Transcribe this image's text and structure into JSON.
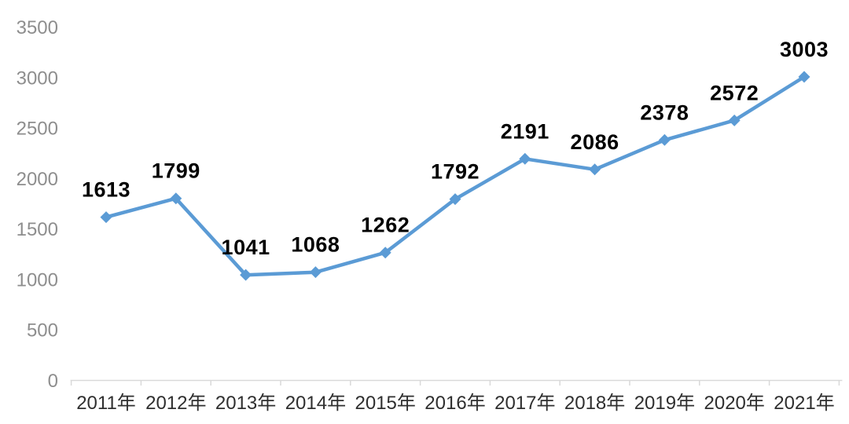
{
  "chart_data": {
    "type": "line",
    "title": "",
    "xlabel": "",
    "ylabel": "",
    "categories": [
      "2011年",
      "2012年",
      "2013年",
      "2014年",
      "2015年",
      "2016年",
      "2017年",
      "2018年",
      "2019年",
      "2020年",
      "2021年"
    ],
    "series": [
      {
        "name": "",
        "values": [
          1613,
          1799,
          1041,
          1068,
          1262,
          1792,
          2191,
          2086,
          2378,
          2572,
          3003
        ],
        "data_labels": [
          "1613",
          "1799",
          "1041",
          "1068",
          "1262",
          "1792",
          "2191",
          "2086",
          "2378",
          "2572",
          "3003"
        ]
      }
    ],
    "ylim": [
      0,
      3500
    ],
    "yticks": [
      0,
      500,
      1000,
      1500,
      2000,
      2500,
      3000,
      3500
    ],
    "ytick_labels": [
      "0",
      "500",
      "1000",
      "1500",
      "2000",
      "2500",
      "3000",
      "3500"
    ],
    "grid": false,
    "legend_position": "none",
    "marker": "diamond",
    "colors": {
      "line": "#5B9BD5",
      "marker": "#5B9BD5",
      "axis_line": "#d9d9d9",
      "data_label": "#000000",
      "x_tick_label": "#2f2f2f",
      "y_tick_label": "#8e8e8e",
      "background": "#ffffff"
    }
  }
}
